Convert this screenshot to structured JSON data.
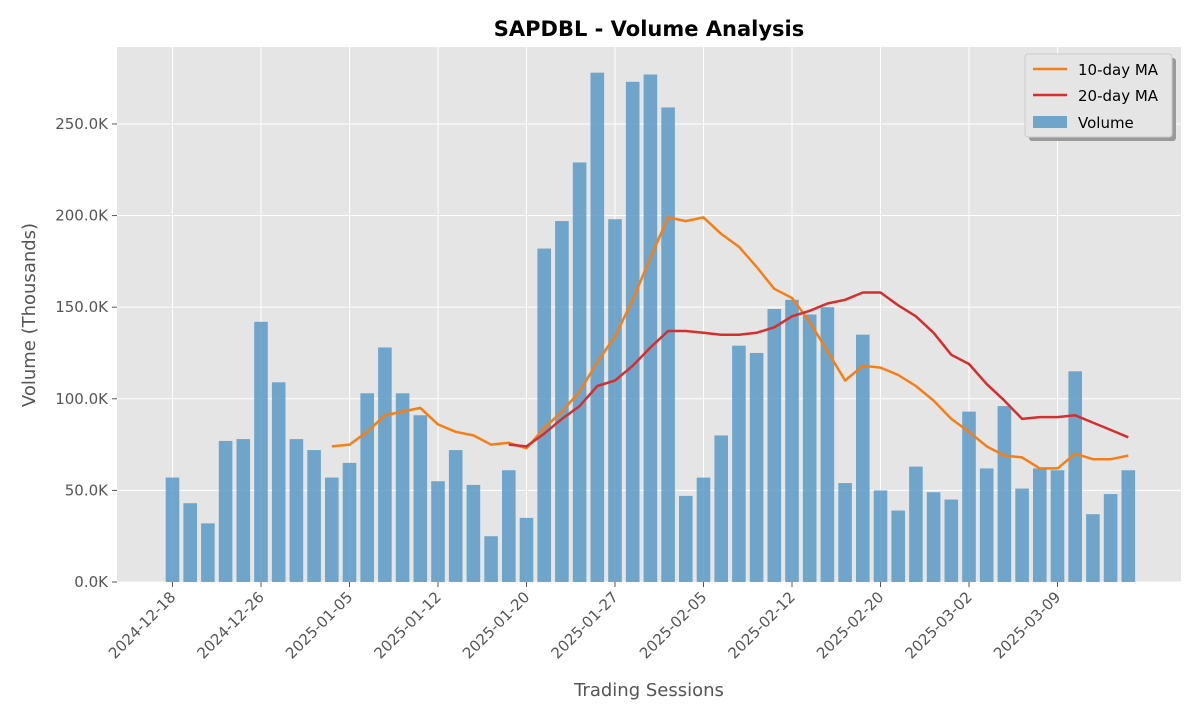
{
  "chart_data": {
    "type": "bar",
    "title": "SAPDBL - Volume Analysis",
    "xlabel": "Trading Sessions",
    "ylabel": "Volume (Thousands)",
    "ylim": [
      0,
      292
    ],
    "y_ticks": [
      0,
      50,
      100,
      150,
      200,
      250
    ],
    "y_tick_labels": [
      "0.0K",
      "50.0K",
      "100.0K",
      "150.0K",
      "200.0K",
      "250.0K"
    ],
    "x_tick_labels": [
      {
        "index": 0,
        "label": "2024-12-18"
      },
      {
        "index": 5,
        "label": "2024-12-26"
      },
      {
        "index": 10,
        "label": "2025-01-05"
      },
      {
        "index": 15,
        "label": "2025-01-12"
      },
      {
        "index": 20,
        "label": "2025-01-20"
      },
      {
        "index": 25,
        "label": "2025-01-27"
      },
      {
        "index": 30,
        "label": "2025-02-05"
      },
      {
        "index": 35,
        "label": "2025-02-12"
      },
      {
        "index": 40,
        "label": "2025-02-20"
      },
      {
        "index": 45,
        "label": "2025-03-02"
      },
      {
        "index": 50,
        "label": "2025-03-09"
      }
    ],
    "grid": true,
    "legend_position": "top-right",
    "series": [
      {
        "name": "Volume",
        "kind": "bar",
        "color": "#5b9ac6",
        "values": [
          57,
          43,
          32,
          77,
          78,
          142,
          109,
          78,
          72,
          57,
          65,
          103,
          128,
          103,
          91,
          55,
          72,
          53,
          25,
          61,
          35,
          182,
          197,
          229,
          278,
          198,
          273,
          277,
          259,
          47,
          57,
          80,
          129,
          125,
          149,
          154,
          146,
          150,
          54,
          135,
          50,
          39,
          63,
          49,
          45,
          93,
          62,
          96,
          51,
          62,
          61,
          115,
          37,
          48,
          61
        ]
      },
      {
        "name": "10-day MA",
        "kind": "line",
        "color": "#f57f17",
        "start_index": 9,
        "values": [
          74,
          75,
          82,
          91,
          93,
          95,
          86,
          82,
          80,
          75,
          76,
          73,
          84,
          93,
          104,
          120,
          134,
          154,
          177,
          199,
          197,
          199,
          190,
          183,
          172,
          160,
          155,
          142,
          126,
          110,
          118,
          117,
          113,
          107,
          99,
          89,
          82,
          74,
          69,
          68,
          62,
          62,
          70,
          67,
          67,
          69
        ]
      },
      {
        "name": "20-day MA",
        "kind": "line",
        "color": "#d32f2f",
        "start_index": 19,
        "values": [
          75,
          74,
          81,
          89,
          96,
          107,
          110,
          118,
          128,
          137,
          137,
          136,
          135,
          135,
          136,
          139,
          145,
          148,
          152,
          154,
          158,
          158,
          151,
          145,
          136,
          124,
          119,
          108,
          99,
          89,
          90,
          90,
          91,
          87,
          83,
          79
        ]
      }
    ]
  }
}
